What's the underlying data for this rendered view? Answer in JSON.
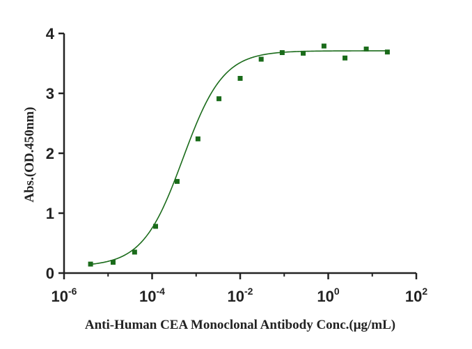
{
  "chart_data": {
    "type": "scatter",
    "xlabel": "Anti-Human CEA Monoclonal Antibody Conc.(μg/mL)",
    "ylabel": "Abs.(OD.450nm)",
    "x_scale": "log",
    "xlim": [
      1e-06,
      100
    ],
    "ylim": [
      0,
      4
    ],
    "x_ticks": [
      {
        "base": "10",
        "exp": "-6"
      },
      {
        "base": "10",
        "exp": "-4"
      },
      {
        "base": "10",
        "exp": "-2"
      },
      {
        "base": "10",
        "exp": "0"
      },
      {
        "base": "10",
        "exp": "2"
      }
    ],
    "x_tick_values": [
      1e-06,
      0.0001,
      0.01,
      1,
      100
    ],
    "y_ticks": [
      "0",
      "1",
      "2",
      "3",
      "4"
    ],
    "y_tick_values": [
      0,
      1,
      2,
      3,
      4
    ],
    "grid": false,
    "colors": {
      "marker": "#1a6b1a",
      "line": "#1a6b1a",
      "axis": "#222222"
    },
    "points": [
      {
        "x": 4e-06,
        "y": 0.15
      },
      {
        "x": 1.3e-05,
        "y": 0.18
      },
      {
        "x": 4e-05,
        "y": 0.35
      },
      {
        "x": 0.00012,
        "y": 0.78
      },
      {
        "x": 0.00037,
        "y": 1.53
      },
      {
        "x": 0.0011,
        "y": 2.24
      },
      {
        "x": 0.0033,
        "y": 2.91
      },
      {
        "x": 0.01,
        "y": 3.25
      },
      {
        "x": 0.03,
        "y": 3.57
      },
      {
        "x": 0.09,
        "y": 3.68
      },
      {
        "x": 0.27,
        "y": 3.67
      },
      {
        "x": 0.8,
        "y": 3.79
      },
      {
        "x": 2.4,
        "y": 3.59
      },
      {
        "x": 7.3,
        "y": 3.74
      },
      {
        "x": 22,
        "y": 3.69
      }
    ],
    "fit": {
      "bottom": 0.11,
      "top": 3.71,
      "ec50": 0.0005,
      "hill": 0.95
    }
  }
}
